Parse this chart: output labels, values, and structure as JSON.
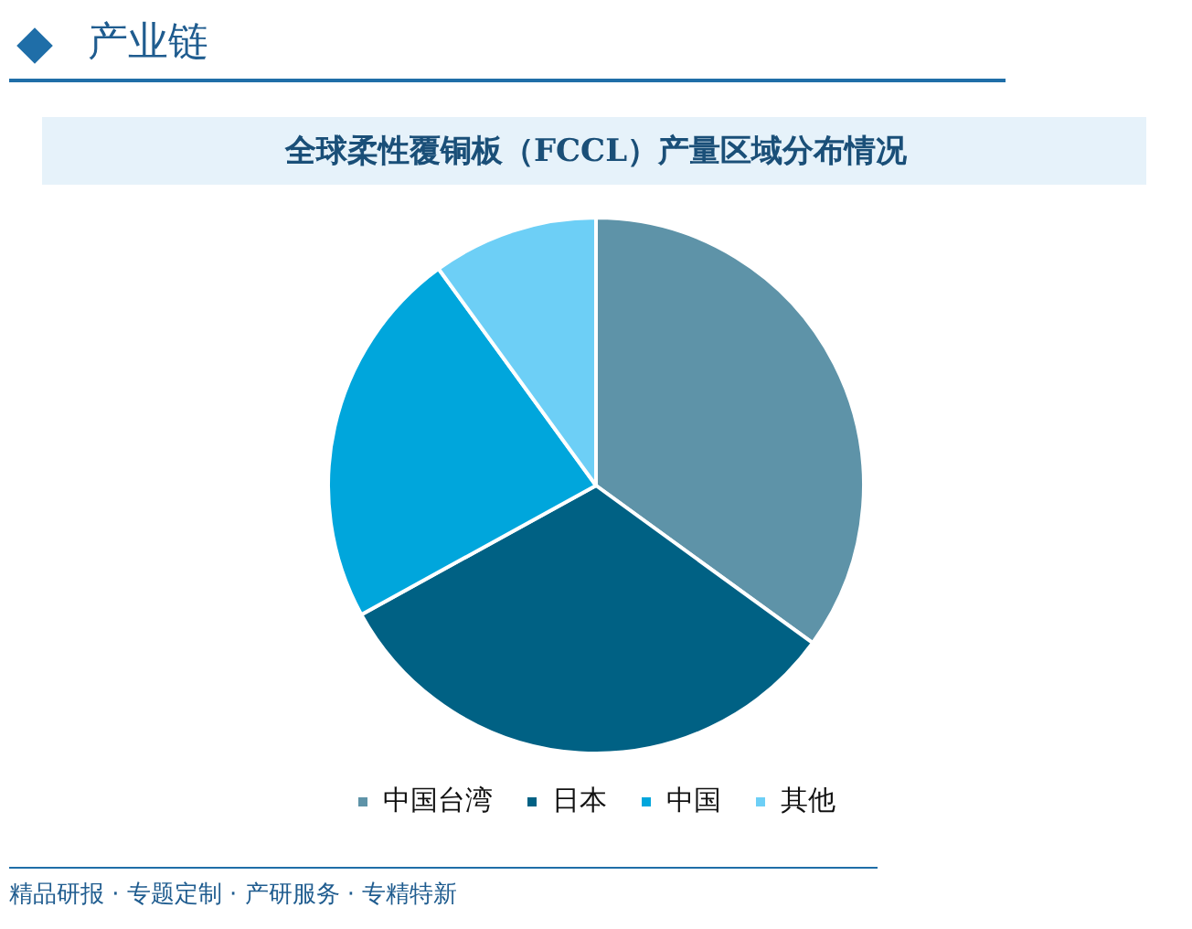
{
  "chart_data": {
    "type": "pie",
    "title": "全球柔性覆铜板（FCCL）产量区域分布情况",
    "categories": [
      "中国台湾",
      "日本",
      "中国",
      "其他"
    ],
    "values": [
      35,
      32,
      23,
      10
    ],
    "colors": [
      "#5e93a8",
      "#006184",
      "#00a6dc",
      "#6dcff6"
    ],
    "legend": "bottom",
    "annotations": [
      "产业链",
      "精品研报 · 专题定制 · 产研服务 · 专精特新"
    ]
  }
}
